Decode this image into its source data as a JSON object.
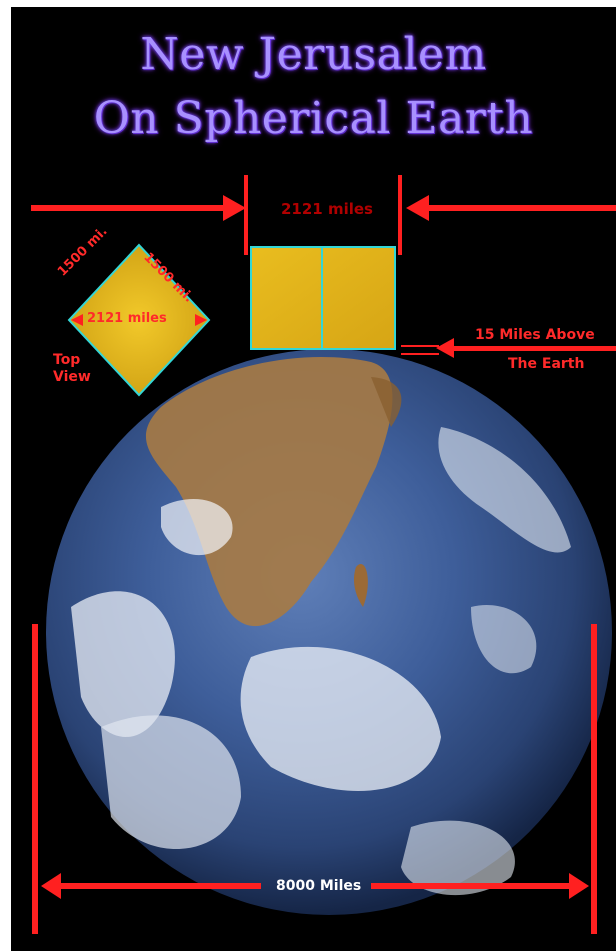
{
  "title": {
    "line1": "New Jerusalem",
    "line2": "On Spherical Earth"
  },
  "labels": {
    "width_top": "2121 miles",
    "side_a": "1500 mi.",
    "side_b": "1500 mi.",
    "diagonal": "2121 miles",
    "top_view": "Top\nView",
    "height_above_line1": "15 Miles Above",
    "height_above_line2": "The Earth",
    "earth_diameter": "8000 Miles"
  },
  "colors": {
    "background": "#000000",
    "arrow": "#ff2020",
    "gold": "#e2b520",
    "outline": "#33d6d6",
    "title": "#a890ff"
  }
}
